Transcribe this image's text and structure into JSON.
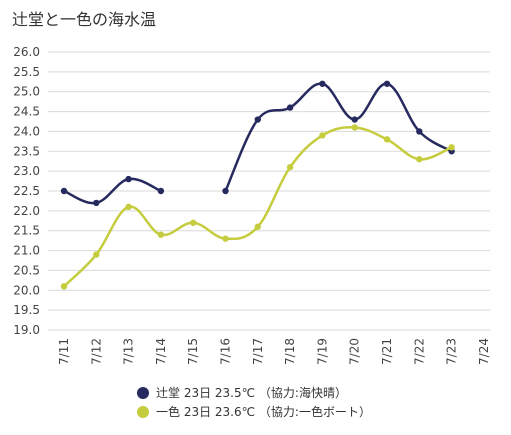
{
  "chart_data": {
    "type": "line",
    "title": "辻堂と一色の海水温",
    "categories": [
      "7/11",
      "7/12",
      "7/13",
      "7/14",
      "7/15",
      "7/16",
      "7/17",
      "7/18",
      "7/19",
      "7/20",
      "7/21",
      "7/22",
      "7/23",
      "7/24"
    ],
    "ylim": [
      19.0,
      26.0
    ],
    "yticks": [
      "19.0",
      "19.5",
      "20.0",
      "20.5",
      "21.0",
      "21.5",
      "22.0",
      "22.5",
      "23.0",
      "23.5",
      "24.0",
      "24.5",
      "25.0",
      "25.5",
      "26.0"
    ],
    "grid": true,
    "legend_position": "bottom",
    "series": [
      {
        "name": "辻堂",
        "legend_label": "辻堂 23日 23.5℃ （協力:海快晴）",
        "color": "#262a5e",
        "values": [
          22.5,
          22.2,
          22.8,
          22.5,
          null,
          22.5,
          24.3,
          24.6,
          25.2,
          24.3,
          25.2,
          24.0,
          23.5,
          null
        ]
      },
      {
        "name": "一色",
        "legend_label": "一色 23日 23.6℃ （協力:一色ボート）",
        "color": "#c5cc3e",
        "values": [
          20.1,
          20.9,
          22.1,
          21.4,
          21.7,
          21.3,
          21.6,
          23.1,
          23.9,
          24.1,
          23.8,
          23.3,
          23.6,
          null
        ]
      }
    ]
  }
}
